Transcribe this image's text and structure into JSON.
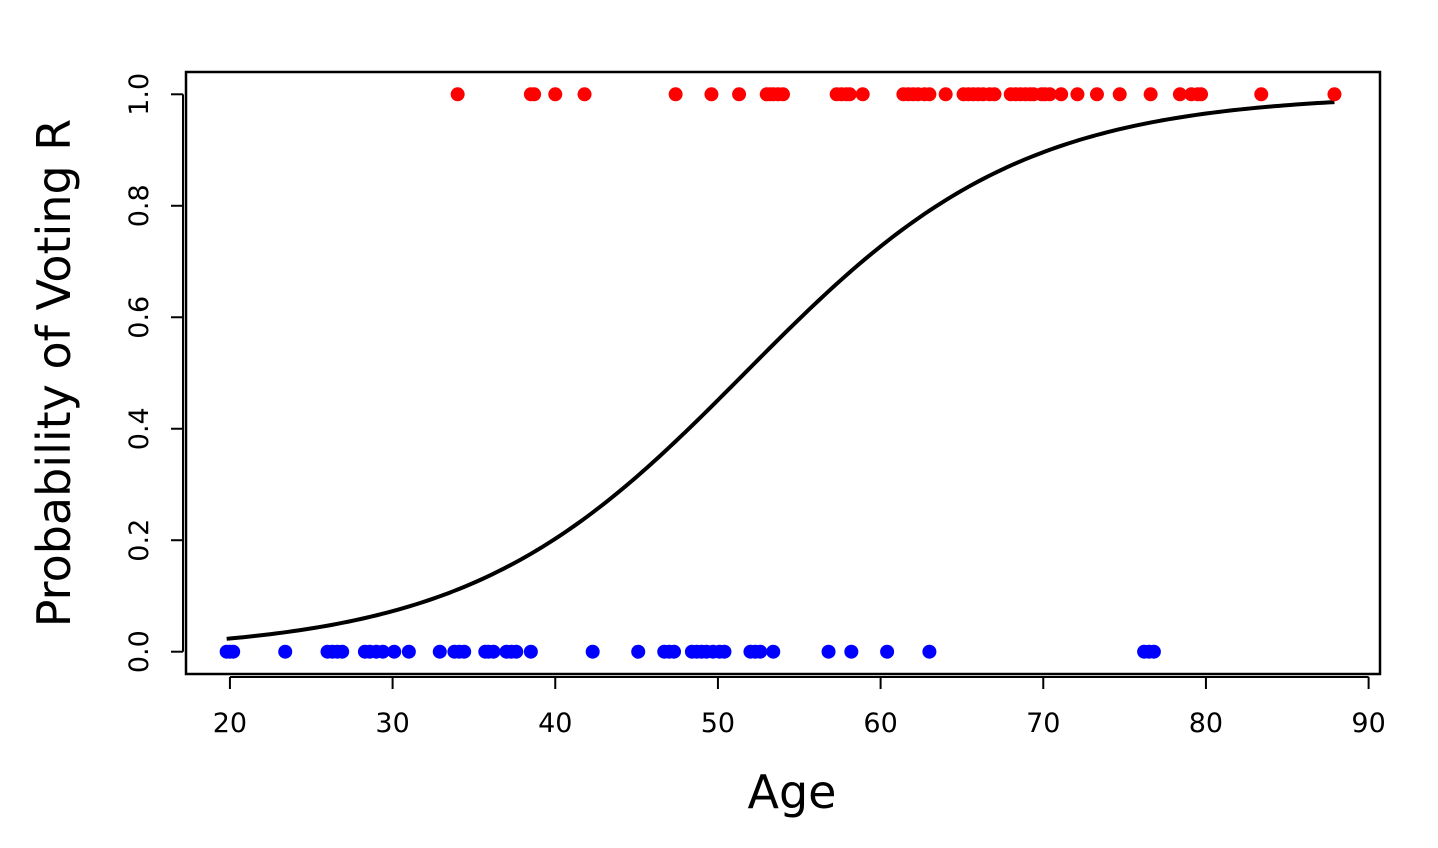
{
  "chart_data": {
    "type": "scatter",
    "title": "",
    "xlabel": "Age",
    "ylabel": "Probability of Voting R",
    "xlim": [
      17.3,
      90.7
    ],
    "ylim": [
      -0.04,
      1.04
    ],
    "x_ticks": [
      20,
      30,
      40,
      50,
      60,
      70,
      80,
      90
    ],
    "x_tick_labels": [
      "20",
      "30",
      "40",
      "50",
      "60",
      "70",
      "80",
      "90"
    ],
    "y_ticks": [
      0.0,
      0.2,
      0.4,
      0.6,
      0.8,
      1.0
    ],
    "y_tick_labels": [
      "0.0",
      "0.2",
      "0.4",
      "0.6",
      "0.8",
      "1.0"
    ],
    "grid": false,
    "legend": "none",
    "series": [
      {
        "color": "#ff0000",
        "points": [
          [
            34,
            1
          ],
          [
            38.5,
            1
          ],
          [
            38.7,
            1
          ],
          [
            40,
            1
          ],
          [
            41.8,
            1
          ],
          [
            47.4,
            1
          ],
          [
            49.6,
            1
          ],
          [
            51.3,
            1
          ],
          [
            53.0,
            1
          ],
          [
            53.2,
            1
          ],
          [
            53.4,
            1
          ],
          [
            53.7,
            1
          ],
          [
            54.0,
            1
          ],
          [
            57.3,
            1
          ],
          [
            57.6,
            1
          ],
          [
            57.9,
            1
          ],
          [
            58.1,
            1
          ],
          [
            58.9,
            1
          ],
          [
            61.4,
            1
          ],
          [
            61.7,
            1
          ],
          [
            62.0,
            1
          ],
          [
            62.3,
            1
          ],
          [
            62.7,
            1
          ],
          [
            63.0,
            1
          ],
          [
            64.0,
            1
          ],
          [
            65.1,
            1
          ],
          [
            65.4,
            1
          ],
          [
            65.7,
            1
          ],
          [
            66.0,
            1
          ],
          [
            66.3,
            1
          ],
          [
            66.7,
            1
          ],
          [
            67.0,
            1
          ],
          [
            68.0,
            1
          ],
          [
            68.3,
            1
          ],
          [
            68.6,
            1
          ],
          [
            68.9,
            1
          ],
          [
            69.2,
            1
          ],
          [
            69.4,
            1
          ],
          [
            69.9,
            1
          ],
          [
            70.1,
            1
          ],
          [
            70.4,
            1
          ],
          [
            71.1,
            1
          ],
          [
            72.1,
            1
          ],
          [
            73.3,
            1
          ],
          [
            74.7,
            1
          ],
          [
            76.6,
            1
          ],
          [
            78.4,
            1
          ],
          [
            79.1,
            1
          ],
          [
            79.5,
            1
          ],
          [
            79.7,
            1
          ],
          [
            83.4,
            1
          ],
          [
            87.9,
            1
          ]
        ]
      },
      {
        "color": "#0000ff",
        "points": [
          [
            19.8,
            0
          ],
          [
            20.0,
            0
          ],
          [
            20.2,
            0
          ],
          [
            23.4,
            0
          ],
          [
            26.0,
            0
          ],
          [
            26.3,
            0
          ],
          [
            26.6,
            0
          ],
          [
            26.9,
            0
          ],
          [
            28.3,
            0
          ],
          [
            28.6,
            0
          ],
          [
            29.0,
            0
          ],
          [
            29.4,
            0
          ],
          [
            30.1,
            0
          ],
          [
            31.0,
            0
          ],
          [
            32.9,
            0
          ],
          [
            33.8,
            0
          ],
          [
            34.1,
            0
          ],
          [
            34.4,
            0
          ],
          [
            35.7,
            0
          ],
          [
            35.9,
            0
          ],
          [
            36.2,
            0
          ],
          [
            37.0,
            0
          ],
          [
            37.3,
            0
          ],
          [
            37.6,
            0
          ],
          [
            38.5,
            0
          ],
          [
            42.3,
            0
          ],
          [
            45.1,
            0
          ],
          [
            46.7,
            0
          ],
          [
            47.0,
            0
          ],
          [
            47.3,
            0
          ],
          [
            48.4,
            0
          ],
          [
            48.7,
            0
          ],
          [
            49.0,
            0
          ],
          [
            49.3,
            0
          ],
          [
            49.7,
            0
          ],
          [
            50.1,
            0
          ],
          [
            50.4,
            0
          ],
          [
            52.0,
            0
          ],
          [
            52.3,
            0
          ],
          [
            52.6,
            0
          ],
          [
            53.4,
            0
          ],
          [
            56.8,
            0
          ],
          [
            58.2,
            0
          ],
          [
            60.4,
            0
          ],
          [
            63.0,
            0
          ],
          [
            76.2,
            0
          ],
          [
            76.5,
            0
          ],
          [
            76.8,
            0
          ]
        ]
      }
    ],
    "curve": {
      "type": "logistic",
      "color": "#000000",
      "intercept": -6.07,
      "slope": 0.1175,
      "x_range": [
        19.8,
        87.9
      ]
    }
  }
}
